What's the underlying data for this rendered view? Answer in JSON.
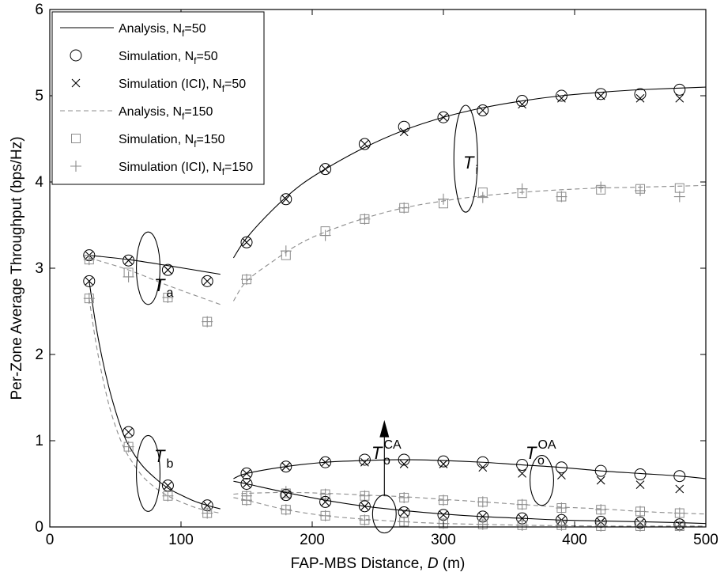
{
  "chart_data": {
    "type": "line",
    "xlabel": "FAP-MBS Distance, D (m)",
    "ylabel": "Per-Zone Average Throughput (bps/Hz)",
    "xlim": [
      0,
      500
    ],
    "ylim": [
      0,
      6
    ],
    "xticks": [
      "0",
      "100",
      "200",
      "300",
      "400",
      "500"
    ],
    "yticks": [
      "0",
      "1",
      "2",
      "3",
      "4",
      "5",
      "6"
    ],
    "grid": false,
    "legend_position": "top-left",
    "legend": [
      {
        "text": "Analysis, N",
        "sub": "f",
        "suffix": "=50",
        "style": "solid-line"
      },
      {
        "text": "Simulation, N",
        "sub": "f",
        "suffix": "=50",
        "style": "circle"
      },
      {
        "text": "Simulation (ICI), N",
        "sub": "f",
        "suffix": "=50",
        "style": "x"
      },
      {
        "text": "Analysis, N",
        "sub": "f",
        "suffix": "=150",
        "style": "dashed-line"
      },
      {
        "text": "Simulation, N",
        "sub": "f",
        "suffix": "=150",
        "style": "square"
      },
      {
        "text": "Simulation (ICI), N",
        "sub": "f",
        "suffix": "=150",
        "style": "plus"
      }
    ],
    "colors": {
      "nf50": "#000000",
      "nf150": "#8c8c8c"
    },
    "annotations": [
      {
        "main": "T",
        "sub": "a",
        "sup": ""
      },
      {
        "main": "T",
        "sub": "b",
        "sup": ""
      },
      {
        "main": "T",
        "sub": "i",
        "sup": ""
      },
      {
        "main": "T",
        "sub": "o",
        "sup": "CA"
      },
      {
        "main": "T",
        "sub": "o",
        "sup": "OA"
      }
    ],
    "groups": [
      {
        "zone": "Ta",
        "analysis50": {
          "x": [
            30,
            60,
            90,
            130
          ],
          "y": [
            3.15,
            3.1,
            3.03,
            2.93
          ]
        },
        "analysis150": {
          "x": [
            30,
            60,
            90,
            130
          ],
          "y": [
            3.12,
            2.98,
            2.8,
            2.58
          ]
        },
        "sim50": {
          "x": [
            30,
            60,
            90,
            120
          ],
          "y": [
            3.15,
            3.09,
            2.98,
            2.85
          ]
        },
        "ici50": {
          "x": [
            30,
            60,
            90,
            120
          ],
          "y": [
            3.15,
            3.09,
            2.98,
            2.85
          ]
        },
        "sim150": {
          "x": [
            30,
            60,
            90,
            120
          ],
          "y": [
            3.1,
            2.95,
            2.66,
            2.38
          ]
        },
        "ici150": {
          "x": [
            30,
            60,
            90,
            120
          ],
          "y": [
            3.1,
            2.9,
            2.66,
            2.38
          ]
        }
      },
      {
        "zone": "Tb",
        "analysis50": {
          "x": [
            30,
            35,
            40,
            45,
            50,
            55,
            60,
            70,
            80,
            90,
            100,
            110,
            120,
            130
          ],
          "y": [
            2.85,
            2.35,
            1.95,
            1.62,
            1.35,
            1.12,
            0.95,
            0.72,
            0.57,
            0.45,
            0.37,
            0.3,
            0.25,
            0.21
          ]
        },
        "analysis150": {
          "x": [
            30,
            35,
            40,
            45,
            50,
            55,
            60,
            70,
            80,
            90,
            100,
            110,
            120,
            130
          ],
          "y": [
            2.65,
            2.15,
            1.75,
            1.42,
            1.17,
            0.97,
            0.82,
            0.6,
            0.46,
            0.36,
            0.29,
            0.23,
            0.19,
            0.16
          ]
        },
        "sim50": {
          "x": [
            30,
            60,
            90,
            120
          ],
          "y": [
            2.85,
            1.1,
            0.48,
            0.25
          ]
        },
        "ici50": {
          "x": [
            30,
            60,
            90,
            120
          ],
          "y": [
            2.85,
            1.1,
            0.48,
            0.25
          ]
        },
        "sim150": {
          "x": [
            30,
            60,
            90,
            120
          ],
          "y": [
            2.65,
            0.93,
            0.36,
            0.16
          ]
        },
        "ici150": {
          "x": [
            30,
            60,
            90,
            120
          ],
          "y": [
            2.65,
            0.93,
            0.36,
            0.16
          ]
        }
      },
      {
        "zone": "Ti",
        "analysis50": {
          "x": [
            140,
            150,
            170,
            190,
            210,
            240,
            270,
            300,
            330,
            360,
            390,
            420,
            450,
            500
          ],
          "y": [
            3.12,
            3.35,
            3.68,
            3.95,
            4.15,
            4.4,
            4.6,
            4.75,
            4.86,
            4.94,
            5.0,
            5.04,
            5.07,
            5.1
          ]
        },
        "analysis150": {
          "x": [
            140,
            150,
            170,
            190,
            210,
            240,
            270,
            300,
            330,
            360,
            390,
            420,
            450,
            500
          ],
          "y": [
            2.62,
            2.85,
            3.08,
            3.28,
            3.42,
            3.58,
            3.7,
            3.78,
            3.84,
            3.88,
            3.91,
            3.93,
            3.94,
            3.96
          ]
        },
        "sim50": {
          "x": [
            150,
            180,
            210,
            240,
            270,
            300,
            330,
            360,
            390,
            420,
            450,
            480
          ],
          "y": [
            3.3,
            3.8,
            4.15,
            4.44,
            4.64,
            4.75,
            4.83,
            4.94,
            5.0,
            5.02,
            5.02,
            5.07
          ]
        },
        "ici50": {
          "x": [
            150,
            180,
            210,
            240,
            270,
            300,
            330,
            360,
            390,
            420,
            450,
            480
          ],
          "y": [
            3.3,
            3.8,
            4.15,
            4.44,
            4.58,
            4.75,
            4.83,
            4.9,
            4.97,
            5.0,
            4.97,
            4.97
          ]
        },
        "sim150": {
          "x": [
            150,
            180,
            210,
            240,
            270,
            300,
            330,
            360,
            390,
            420,
            450,
            480
          ],
          "y": [
            2.87,
            3.15,
            3.43,
            3.57,
            3.7,
            3.75,
            3.88,
            3.87,
            3.83,
            3.91,
            3.92,
            3.93
          ]
        },
        "ici150": {
          "x": [
            150,
            180,
            210,
            240,
            270,
            300,
            330,
            360,
            390,
            420,
            450,
            480
          ],
          "y": [
            2.87,
            3.2,
            3.38,
            3.57,
            3.7,
            3.8,
            3.82,
            3.92,
            3.83,
            3.94,
            3.9,
            3.83
          ]
        }
      },
      {
        "zone": "ToOA",
        "analysis50": {
          "x": [
            140,
            150,
            180,
            210,
            240,
            270,
            300,
            330,
            360,
            390,
            420,
            450,
            480,
            500
          ],
          "y": [
            0.56,
            0.62,
            0.7,
            0.75,
            0.77,
            0.78,
            0.77,
            0.75,
            0.72,
            0.69,
            0.65,
            0.62,
            0.59,
            0.56
          ]
        },
        "analysis150": {
          "x": [
            140,
            150,
            180,
            210,
            240,
            270,
            300,
            330,
            360,
            390,
            420,
            450,
            480,
            500
          ],
          "y": [
            0.38,
            0.39,
            0.4,
            0.39,
            0.37,
            0.35,
            0.32,
            0.29,
            0.26,
            0.23,
            0.21,
            0.18,
            0.16,
            0.15
          ]
        },
        "sim50": {
          "x": [
            150,
            180,
            210,
            240,
            270,
            300,
            330,
            360,
            390,
            420,
            450,
            480
          ],
          "y": [
            0.62,
            0.7,
            0.75,
            0.78,
            0.78,
            0.76,
            0.75,
            0.72,
            0.69,
            0.65,
            0.61,
            0.59
          ]
        },
        "ici50": {
          "x": [
            150,
            180,
            210,
            240,
            270,
            300,
            330,
            360,
            390,
            420,
            450,
            480
          ],
          "y": [
            0.62,
            0.7,
            0.75,
            0.75,
            0.73,
            0.73,
            0.69,
            0.62,
            0.6,
            0.54,
            0.49,
            0.44
          ]
        },
        "sim150": {
          "x": [
            150,
            180,
            210,
            240,
            270,
            300,
            330,
            360,
            390,
            420,
            450,
            480
          ],
          "y": [
            0.36,
            0.39,
            0.38,
            0.36,
            0.34,
            0.31,
            0.29,
            0.26,
            0.22,
            0.2,
            0.18,
            0.16
          ]
        },
        "ici150": {
          "x": [
            150,
            180,
            210,
            240,
            270,
            300,
            330,
            360,
            390,
            420,
            450,
            480
          ],
          "y": [
            0.36,
            0.41,
            0.38,
            0.36,
            0.34,
            0.31,
            0.29,
            0.26,
            0.22,
            0.2,
            0.18,
            0.16
          ]
        }
      },
      {
        "zone": "ToCA",
        "analysis50": {
          "x": [
            140,
            150,
            180,
            210,
            240,
            270,
            300,
            330,
            360,
            390,
            420,
            450,
            480,
            500
          ],
          "y": [
            0.53,
            0.5,
            0.4,
            0.31,
            0.24,
            0.19,
            0.15,
            0.12,
            0.1,
            0.08,
            0.07,
            0.06,
            0.05,
            0.04
          ]
        },
        "analysis150": {
          "x": [
            140,
            150,
            180,
            210,
            240,
            270,
            300,
            330,
            360,
            390,
            420,
            450,
            480,
            500
          ],
          "y": [
            0.34,
            0.31,
            0.2,
            0.13,
            0.09,
            0.06,
            0.04,
            0.03,
            0.02,
            0.015,
            0.01,
            0.01,
            0.01,
            0.01
          ]
        },
        "sim50": {
          "x": [
            150,
            180,
            210,
            240,
            270,
            300,
            330,
            360,
            390,
            420,
            450,
            480
          ],
          "y": [
            0.5,
            0.37,
            0.29,
            0.24,
            0.17,
            0.14,
            0.12,
            0.1,
            0.08,
            0.06,
            0.05,
            0.03
          ]
        },
        "ici50": {
          "x": [
            150,
            180,
            210,
            240,
            270,
            300,
            330,
            360,
            390,
            420,
            450,
            480
          ],
          "y": [
            0.5,
            0.37,
            0.29,
            0.24,
            0.17,
            0.14,
            0.12,
            0.1,
            0.08,
            0.06,
            0.05,
            0.03
          ]
        },
        "sim150": {
          "x": [
            150,
            180,
            210,
            240,
            270,
            300,
            330,
            360,
            390,
            420,
            450,
            480
          ],
          "y": [
            0.31,
            0.2,
            0.13,
            0.08,
            0.06,
            0.04,
            0.03,
            0.02,
            0.02,
            0.01,
            0.01,
            0.01
          ]
        },
        "ici150": {
          "x": [
            150,
            180,
            210,
            240,
            270,
            300,
            330,
            360,
            390,
            420,
            450,
            480
          ],
          "y": [
            0.31,
            0.2,
            0.13,
            0.08,
            0.06,
            0.04,
            0.03,
            0.02,
            0.02,
            0.01,
            0.01,
            0.01
          ]
        }
      }
    ]
  }
}
